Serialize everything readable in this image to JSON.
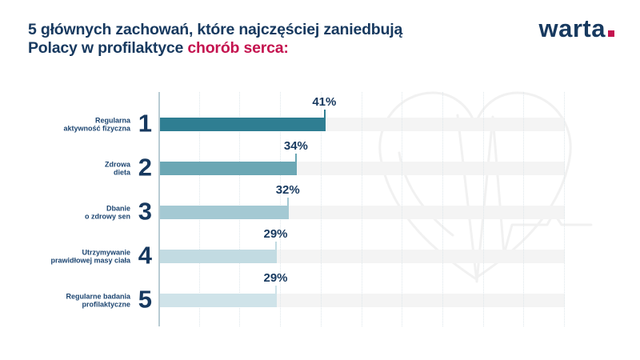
{
  "title": {
    "line1": "5 głównych zachowań, które najczęściej zaniedbują",
    "line2_prefix": "Polacy w profilaktyce ",
    "line2_highlight": "chorób serca:"
  },
  "logo": {
    "wordmark": "warta"
  },
  "colors": {
    "navy": "#17395f",
    "red": "#c4134f",
    "track": "#f4f4f4",
    "axis": "#b9ccd3",
    "grid": "#dde6ea",
    "watermark": "#f1f1f1"
  },
  "chart_data": {
    "type": "bar",
    "orientation": "horizontal",
    "title": "5 głównych zachowań, które najczęściej zaniedbują Polacy w profilaktyce chorób serca",
    "categories": [
      "Regularna aktywność fizyczna",
      "Zdrowa dieta",
      "Dbanie o zdrowy sen",
      "Utrzymywanie prawidłowej masy ciała",
      "Regularne badania profilaktyczne"
    ],
    "label_lines": [
      [
        "Regularna",
        "aktywność fizyczna"
      ],
      [
        "Zdrowa",
        "dieta"
      ],
      [
        "Dbanie",
        "o zdrowy sen"
      ],
      [
        "Utrzymywanie",
        "prawidłowej masy ciała"
      ],
      [
        "Regularne badania",
        "profilaktyczne"
      ]
    ],
    "ranks": [
      "1",
      "2",
      "3",
      "4",
      "5"
    ],
    "values": [
      41,
      34,
      32,
      29,
      29
    ],
    "value_labels": [
      "41%",
      "34%",
      "32%",
      "29%",
      "29%"
    ],
    "bar_colors": [
      "#2f7e92",
      "#6ba7b4",
      "#a4c9d3",
      "#c2dbe2",
      "#cfe3e9"
    ],
    "xlabel": "",
    "ylabel": "",
    "xlim": [
      0,
      100
    ],
    "grid": "vertical dotted every 10%",
    "legend": "none"
  }
}
